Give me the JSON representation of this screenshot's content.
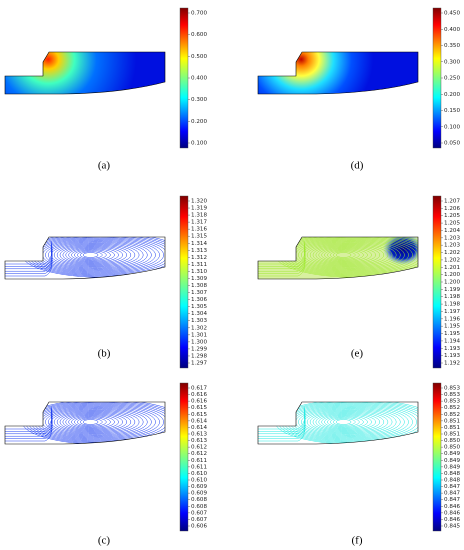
{
  "panels": [
    {
      "label": "(a)",
      "colorbar_labels": [
        "0.700",
        "0.600",
        "0.500",
        "0.400",
        "0.300",
        "0.200",
        "0.100"
      ]
    },
    {
      "label": "(b)",
      "colorbar_labels": [
        "1.320",
        "1.319",
        "1.318",
        "1.317",
        "1.316",
        "1.315",
        "1.314",
        "1.313",
        "1.312",
        "1.311",
        "1.310",
        "1.309",
        "1.308",
        "1.307",
        "1.306",
        "1.305",
        "1.304",
        "1.303",
        "1.302",
        "1.301",
        "1.300",
        "1.299",
        "1.298",
        "1.297"
      ]
    },
    {
      "label": "(c)",
      "colorbar_labels": [
        "0.617",
        "0.616",
        "0.616",
        "0.615",
        "0.615",
        "0.614",
        "0.614",
        "0.613",
        "0.613",
        "0.612",
        "0.612",
        "0.611",
        "0.611",
        "0.610",
        "0.610",
        "0.609",
        "0.609",
        "0.608",
        "0.608",
        "0.607",
        "0.607",
        "0.606"
      ]
    },
    {
      "label": "(d)",
      "colorbar_labels": [
        "0.450",
        "0.400",
        "0.350",
        "0.300",
        "0.250",
        "0.200",
        "0.150",
        "0.100",
        "0.050"
      ]
    },
    {
      "label": "(e)",
      "colorbar_labels": [
        "1.207",
        "1.206",
        "1.205",
        "1.205",
        "1.204",
        "1.203",
        "1.203",
        "1.202",
        "1.202",
        "1.201",
        "1.200",
        "1.200",
        "1.199",
        "1.198",
        "1.198",
        "1.197",
        "1.196",
        "1.195",
        "1.195",
        "1.194",
        "1.193",
        "1.193",
        "1.192"
      ]
    },
    {
      "label": "(f)",
      "colorbar_labels": [
        "0.853",
        "0.853",
        "0.853",
        "0.852",
        "0.852",
        "0.851",
        "0.851",
        "0.851",
        "0.850",
        "0.850",
        "0.849",
        "0.849",
        "0.849",
        "0.848",
        "0.848",
        "0.847",
        "0.847",
        "0.847",
        "0.846",
        "0.846",
        "0.846",
        "0.845"
      ]
    }
  ]
}
